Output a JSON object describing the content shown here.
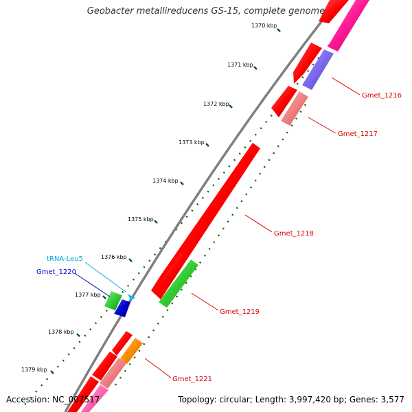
{
  "title": "Geobacter metallireducens GS-15, complete genome",
  "footer": {
    "accession": "Accession: NC_007517",
    "summary": "Topology: circular; Length: 3,997,420 bp; Genes: 3,577"
  },
  "colors": {
    "backbone": "#7f7f7f",
    "cds": "#ff0000",
    "cds_light": "#f08080",
    "cds_purple": "#7b68ee",
    "cds_magenta": "#ff1493",
    "cds_pink": "#ff69b4",
    "rna_green": "#32cd32",
    "blue": "#0000cd",
    "trna": "#00bfff",
    "orange": "#ff8c00",
    "tick": "#006400",
    "label_red": "#dd0000",
    "label_blue": "#0000cc",
    "label_cyan": "#00aadd"
  },
  "ticks": [
    "1370 kbp",
    "1371 kbp",
    "1372 kbp",
    "1373 kbp",
    "1374 kbp",
    "1375 kbp",
    "1376 kbp",
    "1377 kbp",
    "1378 kbp",
    "1379 kbp"
  ],
  "gene_labels": [
    "Gmet_1216",
    "Gmet_1217",
    "Gmet_1218",
    "Gmet_1219",
    "Gmet_1220",
    "tRNA-Leu5",
    "Gmet_1221"
  ]
}
